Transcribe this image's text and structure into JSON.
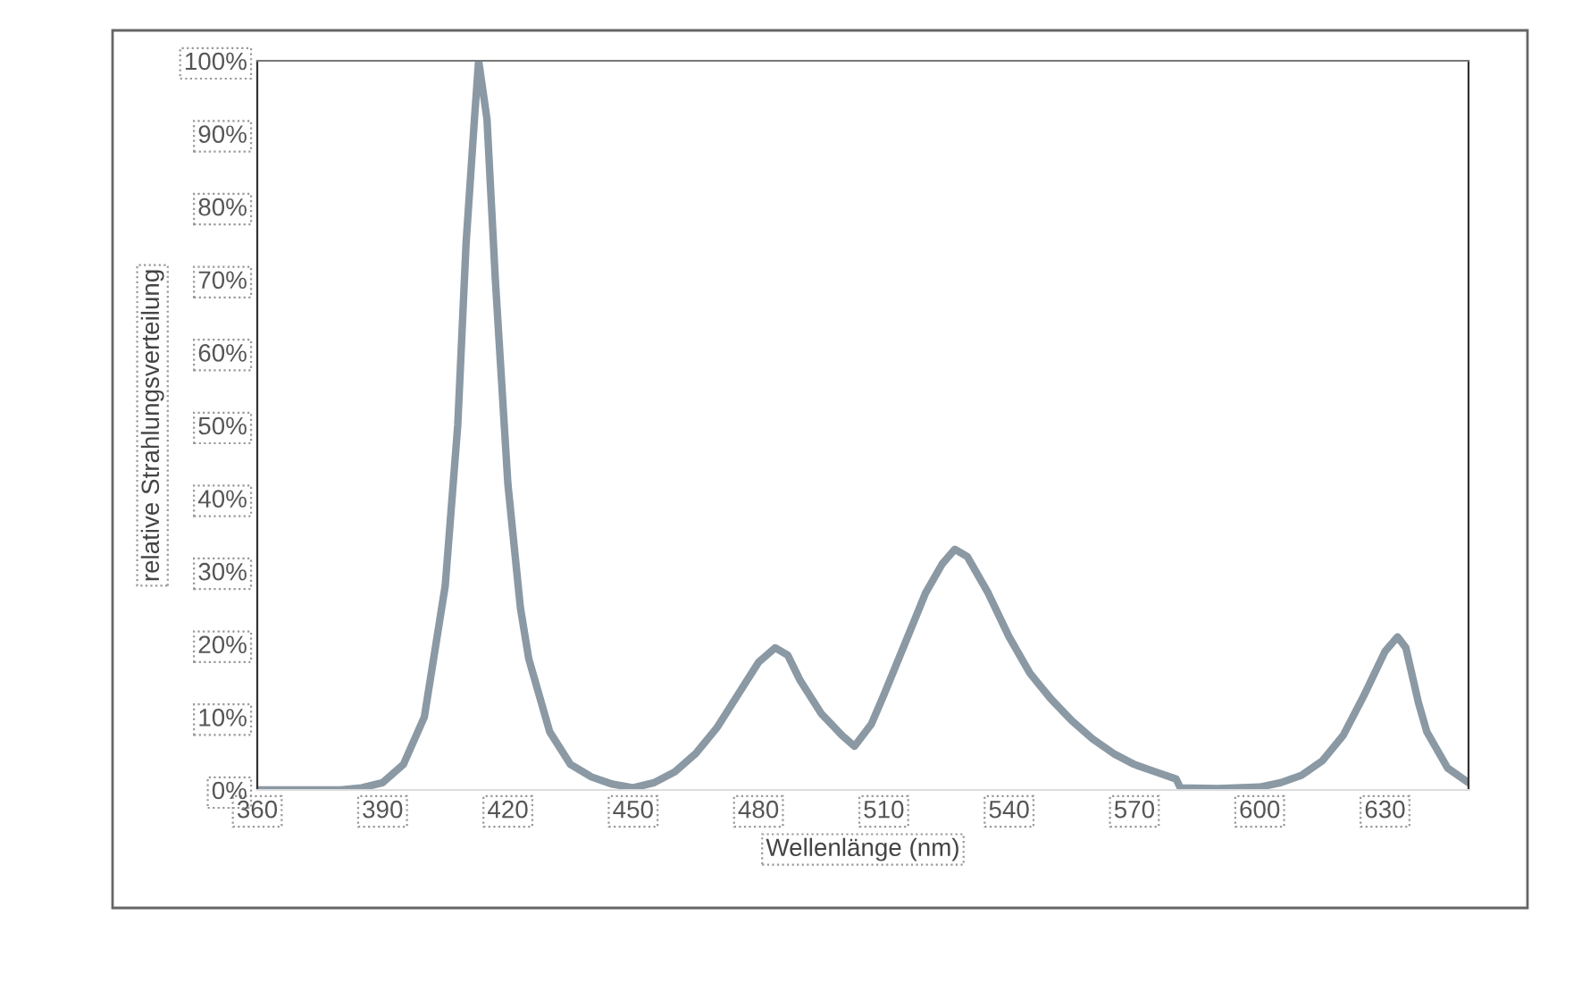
{
  "chart_data": {
    "type": "line",
    "xlabel": "Wellenlänge (nm)",
    "ylabel": "relative Strahlungsverteilung",
    "x": [
      360,
      380,
      385,
      390,
      395,
      400,
      405,
      408,
      410,
      412,
      413,
      415,
      417,
      420,
      423,
      425,
      430,
      435,
      440,
      445,
      450,
      455,
      460,
      465,
      470,
      475,
      480,
      484,
      487,
      490,
      495,
      500,
      503,
      507,
      510,
      515,
      520,
      524,
      527,
      530,
      535,
      540,
      545,
      550,
      555,
      560,
      565,
      570,
      575,
      580,
      581,
      590,
      600,
      605,
      610,
      615,
      620,
      625,
      630,
      633,
      635,
      638,
      640,
      645,
      650
    ],
    "series": [
      {
        "color": "#8a99a4",
        "values": [
          0,
          0,
          0.3,
          1,
          3.5,
          10,
          28,
          50,
          75,
          92,
          100,
          92,
          70,
          42,
          25,
          18,
          8,
          3.5,
          1.8,
          0.8,
          0.3,
          1,
          2.5,
          5,
          8.5,
          13,
          17.5,
          19.5,
          18.5,
          15,
          10.5,
          7.5,
          6,
          9,
          13,
          20,
          27,
          31,
          33,
          32,
          27,
          21,
          16,
          12.5,
          9.5,
          7,
          5,
          3.5,
          2.5,
          1.5,
          0.3,
          0.2,
          0.4,
          1,
          2,
          4,
          7.5,
          13,
          19,
          21,
          19.5,
          12,
          8,
          3,
          1
        ]
      }
    ],
    "xlim": [
      360,
      650
    ],
    "xticks": [
      360,
      390,
      420,
      450,
      480,
      510,
      540,
      570,
      600,
      630
    ],
    "ylim": [
      0,
      100
    ],
    "yticks": [
      {
        "value": 0,
        "label": "0%"
      },
      {
        "value": 10,
        "label": "10%"
      },
      {
        "value": 20,
        "label": "20%"
      },
      {
        "value": 30,
        "label": "30%"
      },
      {
        "value": 40,
        "label": "40%"
      },
      {
        "value": 50,
        "label": "50%"
      },
      {
        "value": 60,
        "label": "60%"
      },
      {
        "value": 70,
        "label": "70%"
      },
      {
        "value": 80,
        "label": "80%"
      },
      {
        "value": 90,
        "label": "90%"
      },
      {
        "value": 100,
        "label": "100%"
      }
    ],
    "grid": false,
    "legend": false,
    "marker": "none",
    "line_style": "solid"
  }
}
